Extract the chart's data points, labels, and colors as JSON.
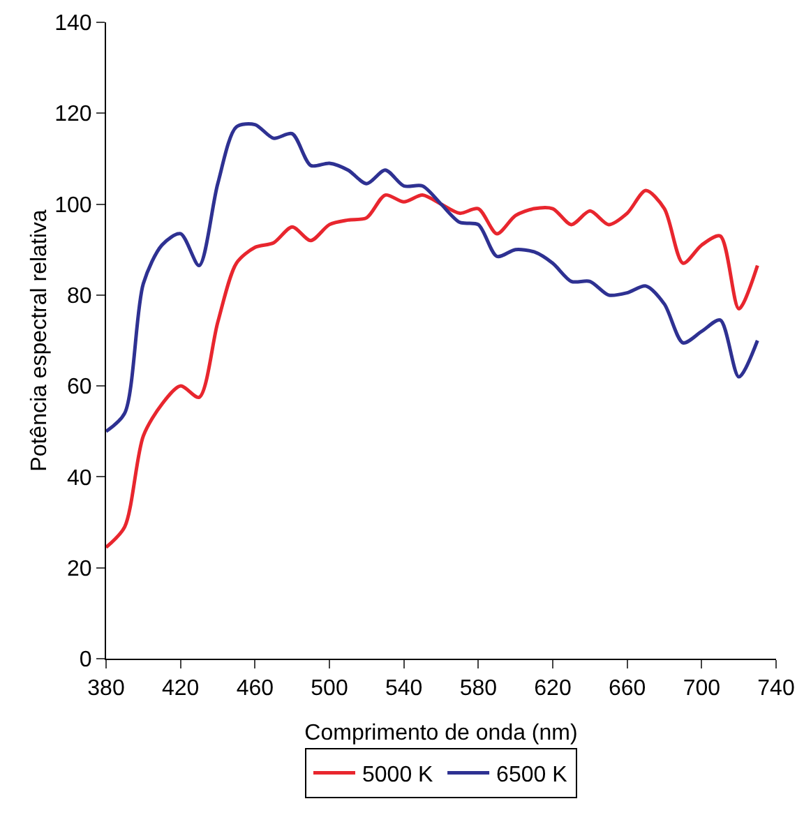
{
  "chart_data": {
    "type": "line",
    "xlabel": "Comprimento de onda (nm)",
    "ylabel": "Potência espectral relativa",
    "x": [
      380,
      390,
      400,
      410,
      420,
      430,
      440,
      450,
      460,
      470,
      480,
      490,
      500,
      510,
      520,
      530,
      540,
      550,
      560,
      570,
      580,
      590,
      600,
      610,
      620,
      630,
      640,
      650,
      660,
      670,
      680,
      690,
      700,
      710,
      720,
      730
    ],
    "series": [
      {
        "name": "5000 K",
        "color": "#e8262e",
        "values": [
          24.5,
          29,
          49,
          56,
          60,
          57.5,
          74,
          87,
          90.5,
          91.5,
          95,
          92,
          95.5,
          96.5,
          97,
          102,
          100.5,
          102,
          100,
          98,
          99,
          93.5,
          97.5,
          99,
          99,
          95.5,
          98.5,
          95.5,
          98,
          103,
          99,
          87,
          91,
          93,
          77,
          86.5
        ]
      },
      {
        "name": "6500 K",
        "color": "#2e3192",
        "values": [
          50,
          54,
          82.5,
          91,
          93.5,
          86.5,
          104.5,
          117,
          117.5,
          114.5,
          115.5,
          108.5,
          109,
          107.5,
          104.5,
          107.5,
          104,
          104,
          100,
          96,
          95.5,
          88.5,
          90,
          89.5,
          87,
          83,
          83,
          80,
          80.5,
          82,
          78,
          69.5,
          72,
          74.5,
          62,
          70
        ]
      }
    ],
    "xlim": [
      380,
      740
    ],
    "xticks": [
      380,
      420,
      460,
      500,
      540,
      580,
      620,
      660,
      700,
      740
    ],
    "ylim": [
      0,
      140
    ],
    "yticks": [
      0,
      20,
      40,
      60,
      80,
      100,
      120,
      140
    ],
    "grid": false,
    "legend": "bottom",
    "marker": "none",
    "line_style": "solid"
  }
}
